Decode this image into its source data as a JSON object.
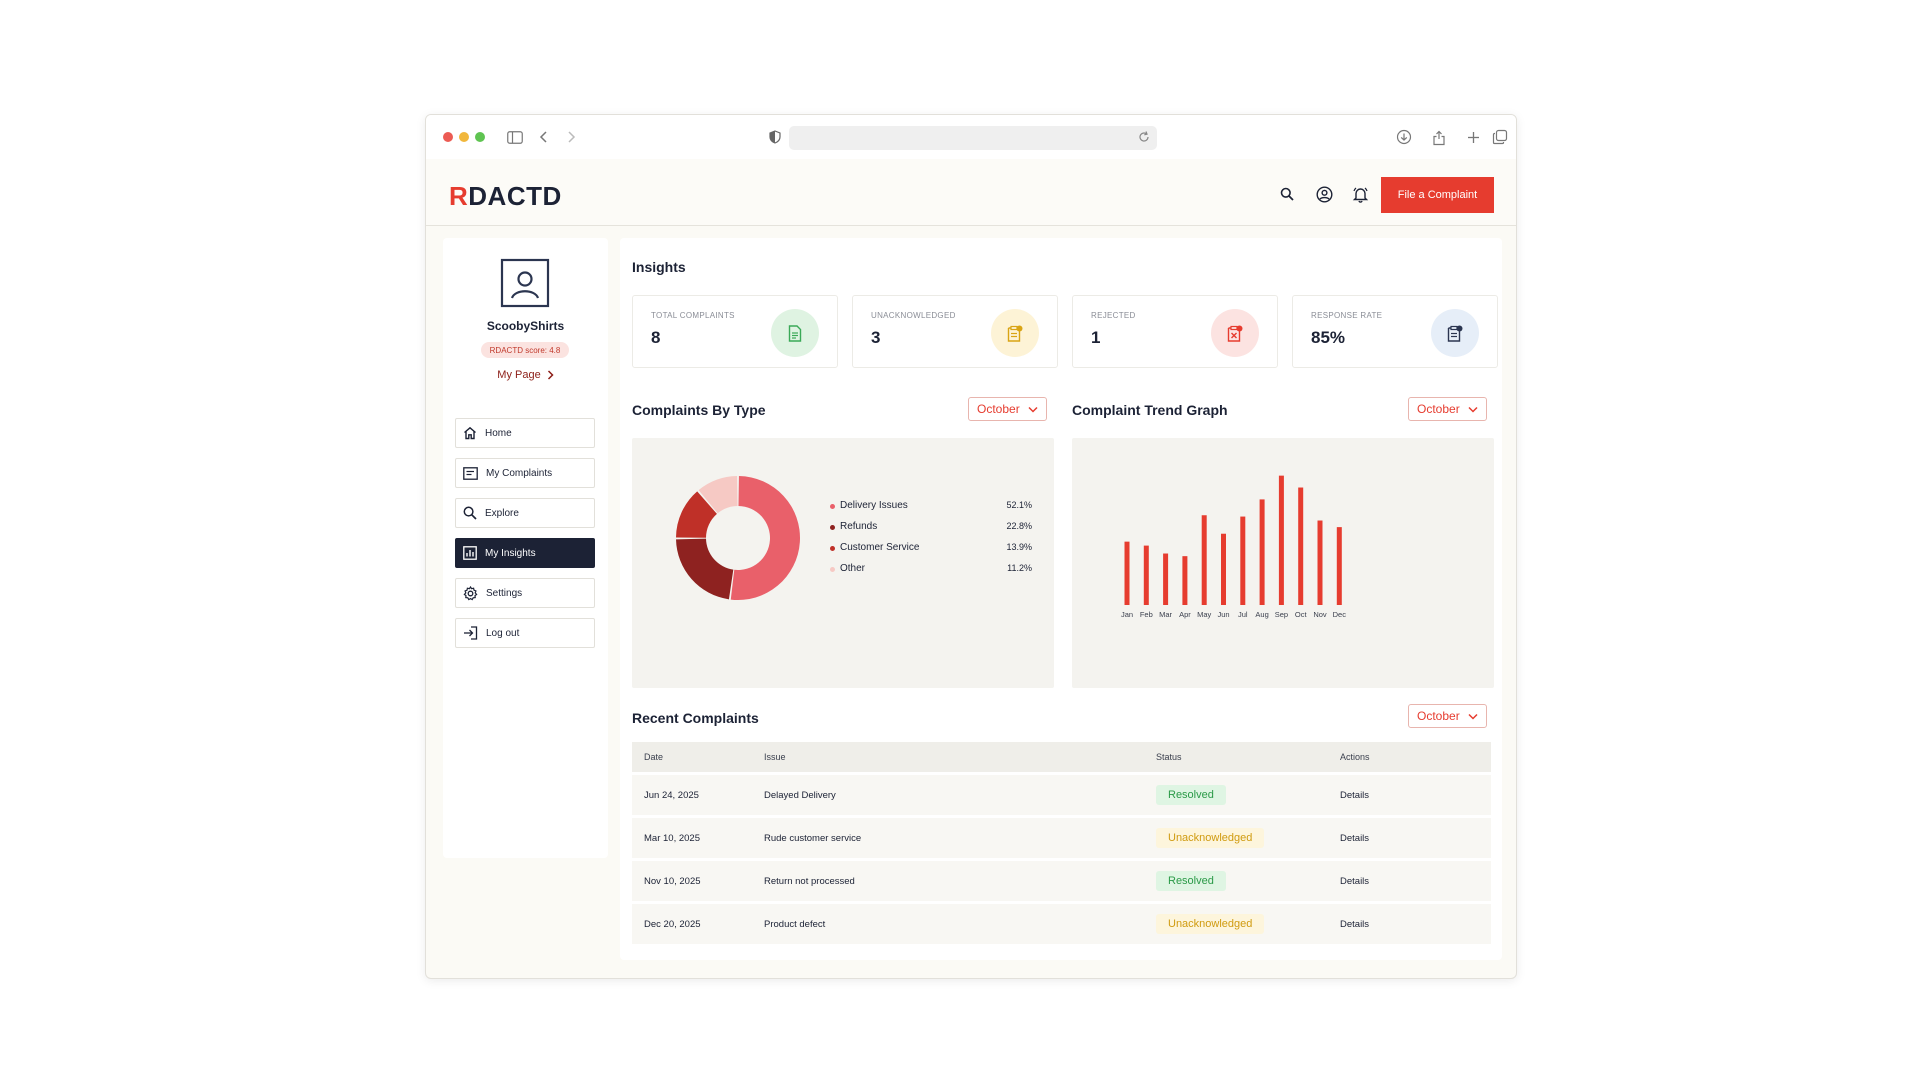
{
  "app": {
    "logo_r": "R",
    "logo_rest": "DACTD",
    "file_button": "File a Complaint"
  },
  "sidebar": {
    "username": "ScoobyShirts",
    "score": "RDACTD score: 4.8",
    "my_page": "My Page",
    "items": [
      {
        "label": "Home",
        "icon": "home-icon"
      },
      {
        "label": "My Complaints",
        "icon": "complaints-icon"
      },
      {
        "label": "Explore",
        "icon": "search-icon"
      },
      {
        "label": "My Insights",
        "icon": "insights-icon"
      },
      {
        "label": "Settings",
        "icon": "gear-icon"
      },
      {
        "label": "Log out",
        "icon": "logout-icon"
      }
    ],
    "active_item": "My Insights"
  },
  "insights": {
    "title": "Insights",
    "cards": [
      {
        "label": "TOTAL COMPLAINTS",
        "value": "8",
        "icon": "document-icon",
        "icon_bg": "#dff3e2",
        "icon_color": "#3aa957"
      },
      {
        "label": "UNACKNOWLEDGED",
        "value": "3",
        "icon": "pending-document-icon",
        "icon_bg": "#fdf3d6",
        "icon_color": "#d9a414"
      },
      {
        "label": "REJECTED",
        "value": "1",
        "icon": "rejected-document-icon",
        "icon_bg": "#fce3e1",
        "icon_color": "#e63c2f"
      },
      {
        "label": "RESPONSE RATE",
        "value": "85%",
        "icon": "response-document-icon",
        "icon_bg": "#e6eef8",
        "icon_color": "#2b3550"
      }
    ]
  },
  "by_type": {
    "title": "Complaints By Type",
    "filter": "October"
  },
  "trend": {
    "title": "Complaint Trend Graph",
    "filter": "October"
  },
  "recent": {
    "title": "Recent Complaints",
    "filter": "October",
    "columns": [
      "Date",
      "Issue",
      "Status",
      "Actions"
    ],
    "rows": [
      {
        "date": "Jun 24, 2025",
        "issue": "Delayed Delivery",
        "status": "Resolved",
        "action": "Details"
      },
      {
        "date": "Mar 10, 2025",
        "issue": "Rude customer service",
        "status": "Unacknowledged",
        "action": "Details"
      },
      {
        "date": "Nov 10, 2025",
        "issue": "Return not processed",
        "status": "Resolved",
        "action": "Details"
      },
      {
        "date": "Dec 20, 2025",
        "issue": "Product defect",
        "status": "Unacknowledged",
        "action": "Details"
      }
    ]
  },
  "colors": {
    "accent": "#e63c2f",
    "navy": "#1c2235"
  },
  "chart_data": [
    {
      "type": "pie",
      "categories": [
        "Delivery Issues",
        "Refunds",
        "Customer Service",
        "Other"
      ],
      "values": [
        52.1,
        22.8,
        13.9,
        11.2
      ],
      "labels": [
        "52.1%",
        "22.8%",
        "13.9%",
        "11.2%"
      ],
      "colors": [
        "#e9606a",
        "#8e2220",
        "#bf3028",
        "#f6c9c4"
      ],
      "title": "Complaints By Type",
      "legend": "right"
    },
    {
      "type": "bar",
      "categories": [
        "Jan",
        "Feb",
        "Mar",
        "Apr",
        "May",
        "Jun",
        "Jul",
        "Aug",
        "Sep",
        "Oct",
        "Nov",
        "Dec"
      ],
      "values": [
        48,
        45,
        39,
        37,
        68,
        54,
        67,
        80,
        98,
        89,
        64,
        59
      ],
      "ylim": [
        0,
        100
      ],
      "title": "Complaint Trend Graph",
      "color": "#e63c2f",
      "grid": false
    }
  ]
}
